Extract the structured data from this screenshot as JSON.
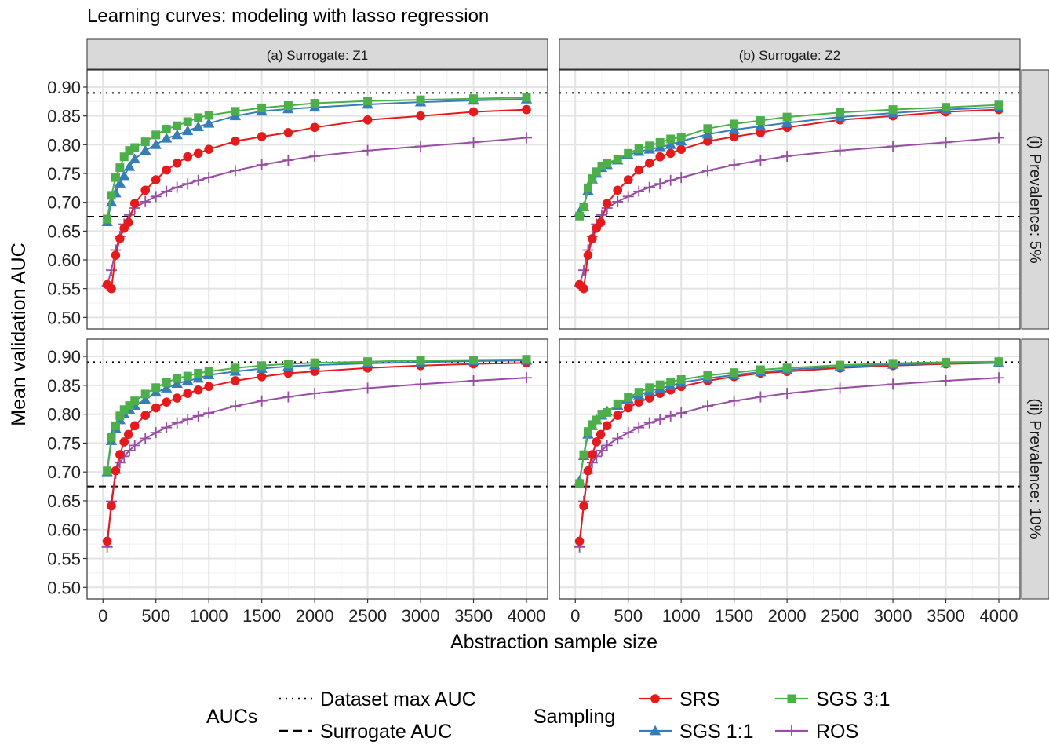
{
  "chart_data": {
    "type": "line",
    "title": "Learning curves: modeling with lasso regression",
    "xlabel": "Abstraction sample size",
    "ylabel": "Mean validation AUC",
    "xlim": [
      -150,
      4200
    ],
    "ylim": [
      0.48,
      0.93
    ],
    "x_ticks": [
      0,
      500,
      1000,
      1500,
      2000,
      2500,
      3000,
      3500,
      4000
    ],
    "x_tick_labels": [
      "0",
      "500",
      "1000",
      "1500",
      "2000",
      "2500",
      "3000",
      "3500",
      "4000"
    ],
    "y_ticks": [
      0.5,
      0.55,
      0.6,
      0.65,
      0.7,
      0.75,
      0.8,
      0.85,
      0.9
    ],
    "y_tick_labels": [
      "0.50",
      "0.55",
      "0.60",
      "0.65",
      "0.70",
      "0.75",
      "0.80",
      "0.85",
      "0.90"
    ],
    "grid": true,
    "col_strips": [
      "(a) Surrogate: Z1",
      "(b) Surrogate: Z2"
    ],
    "row_strips": [
      "(i) Prevalence: 5%",
      "(ii) Prevalence: 10%"
    ],
    "x_srs": [
      40,
      80,
      120,
      160,
      200,
      240,
      300,
      400,
      500,
      600,
      700,
      800,
      900,
      1000,
      1250,
      1500,
      1750,
      2000,
      2500,
      3000,
      3500,
      4000
    ],
    "x_sgs": [
      40,
      80,
      120,
      160,
      200,
      250,
      300,
      400,
      500,
      600,
      700,
      800,
      900,
      1000,
      1250,
      1500,
      1750,
      2000,
      2500,
      3000,
      3500,
      4000
    ],
    "x_ros": [
      40,
      80,
      120,
      160,
      200,
      250,
      300,
      400,
      500,
      600,
      700,
      800,
      900,
      1000,
      1250,
      1500,
      1750,
      2000,
      2500,
      3000,
      3500,
      4000
    ],
    "panels": [
      {
        "row": 0,
        "col": 0,
        "lines": {
          "max_auc": 0.89,
          "surrogate_auc": 0.675
        },
        "series": [
          {
            "name": "SRS",
            "values": [
              0.557,
              0.55,
              0.608,
              0.637,
              0.655,
              0.665,
              0.698,
              0.721,
              0.739,
              0.756,
              0.768,
              0.779,
              0.785,
              0.792,
              0.806,
              0.814,
              0.821,
              0.83,
              0.843,
              0.85,
              0.857,
              0.861
            ]
          },
          {
            "name": "SGS 1:1",
            "values": [
              0.666,
              0.7,
              0.716,
              0.733,
              0.746,
              0.762,
              0.775,
              0.79,
              0.8,
              0.811,
              0.817,
              0.824,
              0.831,
              0.837,
              0.85,
              0.858,
              0.862,
              0.865,
              0.87,
              0.874,
              0.877,
              0.879
            ]
          },
          {
            "name": "SGS 3:1",
            "values": [
              0.671,
              0.712,
              0.743,
              0.76,
              0.779,
              0.79,
              0.795,
              0.805,
              0.817,
              0.827,
              0.833,
              0.84,
              0.847,
              0.851,
              0.858,
              0.864,
              0.868,
              0.872,
              0.876,
              0.878,
              0.88,
              0.882
            ]
          },
          {
            "name": "ROS",
            "values": [
              0.555,
              0.582,
              0.617,
              0.641,
              0.662,
              0.678,
              0.69,
              0.701,
              0.71,
              0.719,
              0.726,
              0.732,
              0.738,
              0.743,
              0.755,
              0.765,
              0.773,
              0.78,
              0.79,
              0.797,
              0.804,
              0.812
            ]
          }
        ]
      },
      {
        "row": 0,
        "col": 1,
        "lines": {
          "max_auc": 0.89,
          "surrogate_auc": 0.675
        },
        "series": [
          {
            "name": "SRS",
            "values": [
              0.557,
              0.55,
              0.608,
              0.637,
              0.655,
              0.665,
              0.698,
              0.721,
              0.739,
              0.756,
              0.768,
              0.779,
              0.785,
              0.792,
              0.806,
              0.814,
              0.821,
              0.83,
              0.843,
              0.85,
              0.857,
              0.861
            ]
          },
          {
            "name": "SGS 1:1",
            "values": [
              0.683,
              0.692,
              0.72,
              0.74,
              0.75,
              0.76,
              0.765,
              0.773,
              0.782,
              0.788,
              0.792,
              0.796,
              0.8,
              0.806,
              0.818,
              0.826,
              0.832,
              0.838,
              0.848,
              0.855,
              0.861,
              0.865
            ]
          },
          {
            "name": "SGS 3:1",
            "values": [
              0.676,
              0.692,
              0.725,
              0.741,
              0.753,
              0.763,
              0.768,
              0.775,
              0.785,
              0.793,
              0.798,
              0.804,
              0.81,
              0.813,
              0.828,
              0.836,
              0.842,
              0.848,
              0.856,
              0.861,
              0.865,
              0.869
            ]
          },
          {
            "name": "ROS",
            "values": [
              0.555,
              0.582,
              0.617,
              0.641,
              0.662,
              0.678,
              0.69,
              0.701,
              0.71,
              0.719,
              0.726,
              0.732,
              0.738,
              0.743,
              0.755,
              0.765,
              0.773,
              0.78,
              0.79,
              0.797,
              0.804,
              0.812
            ]
          }
        ]
      },
      {
        "row": 1,
        "col": 0,
        "lines": {
          "max_auc": 0.89,
          "surrogate_auc": 0.675
        },
        "series": [
          {
            "name": "SRS",
            "values": [
              0.58,
              0.641,
              0.702,
              0.73,
              0.752,
              0.765,
              0.78,
              0.798,
              0.811,
              0.821,
              0.828,
              0.836,
              0.842,
              0.848,
              0.858,
              0.865,
              0.871,
              0.874,
              0.88,
              0.884,
              0.887,
              0.889
            ]
          },
          {
            "name": "SGS 1:1",
            "values": [
              0.7,
              0.754,
              0.775,
              0.79,
              0.8,
              0.808,
              0.815,
              0.825,
              0.838,
              0.845,
              0.853,
              0.858,
              0.862,
              0.868,
              0.874,
              0.879,
              0.883,
              0.885,
              0.888,
              0.89,
              0.892,
              0.893
            ]
          },
          {
            "name": "SGS 3:1",
            "values": [
              0.702,
              0.76,
              0.78,
              0.797,
              0.808,
              0.815,
              0.823,
              0.835,
              0.846,
              0.855,
              0.862,
              0.866,
              0.871,
              0.874,
              0.88,
              0.884,
              0.887,
              0.889,
              0.891,
              0.893,
              0.894,
              0.895
            ]
          },
          {
            "name": "ROS",
            "values": [
              0.57,
              0.649,
              0.698,
              0.716,
              0.727,
              0.737,
              0.746,
              0.758,
              0.768,
              0.777,
              0.785,
              0.791,
              0.797,
              0.802,
              0.814,
              0.823,
              0.83,
              0.836,
              0.845,
              0.852,
              0.858,
              0.863
            ]
          }
        ]
      },
      {
        "row": 1,
        "col": 1,
        "lines": {
          "max_auc": 0.89,
          "surrogate_auc": 0.675
        },
        "series": [
          {
            "name": "SRS",
            "values": [
              0.58,
              0.641,
              0.702,
              0.73,
              0.752,
              0.765,
              0.78,
              0.798,
              0.811,
              0.821,
              0.828,
              0.836,
              0.842,
              0.848,
              0.858,
              0.865,
              0.871,
              0.874,
              0.88,
              0.884,
              0.887,
              0.889
            ]
          },
          {
            "name": "SGS 1:1",
            "values": [
              0.685,
              0.728,
              0.765,
              0.78,
              0.79,
              0.798,
              0.805,
              0.815,
              0.826,
              0.833,
              0.84,
              0.845,
              0.849,
              0.855,
              0.862,
              0.868,
              0.873,
              0.877,
              0.882,
              0.886,
              0.888,
              0.89
            ]
          },
          {
            "name": "SGS 3:1",
            "values": [
              0.68,
              0.73,
              0.77,
              0.782,
              0.79,
              0.8,
              0.803,
              0.818,
              0.829,
              0.838,
              0.846,
              0.851,
              0.856,
              0.86,
              0.867,
              0.872,
              0.877,
              0.88,
              0.885,
              0.888,
              0.89,
              0.891
            ]
          },
          {
            "name": "ROS",
            "values": [
              0.57,
              0.649,
              0.698,
              0.716,
              0.727,
              0.737,
              0.746,
              0.758,
              0.768,
              0.777,
              0.785,
              0.791,
              0.797,
              0.802,
              0.814,
              0.823,
              0.83,
              0.836,
              0.845,
              0.852,
              0.858,
              0.863
            ]
          }
        ]
      }
    ],
    "series_styles": {
      "SRS": {
        "color": "#e41a1c",
        "marker": "circle"
      },
      "SGS 1:1": {
        "color": "#377eb8",
        "marker": "triangle"
      },
      "SGS 3:1": {
        "color": "#4daf4a",
        "marker": "square"
      },
      "ROS": {
        "color": "#984ea3",
        "marker": "cross"
      }
    },
    "legend": {
      "placement": "bottom",
      "aucs_title": "AUCs",
      "aucs_items": [
        {
          "label": "Dataset max AUC",
          "linetype": "dotted"
        },
        {
          "label": "Surrogate AUC",
          "linetype": "dashed"
        }
      ],
      "sampling_title": "Sampling",
      "sampling_items": [
        "SRS",
        "SGS 1:1",
        "SGS 3:1",
        "ROS"
      ]
    }
  }
}
